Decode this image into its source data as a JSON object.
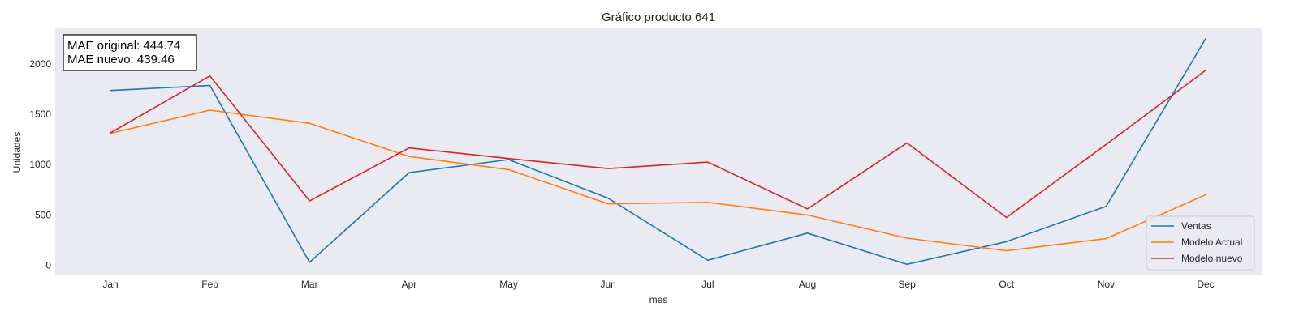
{
  "chart_data": {
    "type": "line",
    "title": "Gráfico producto 641",
    "xlabel": "mes",
    "ylabel": "Unidades",
    "categories": [
      "Jan",
      "Feb",
      "Mar",
      "Apr",
      "May",
      "Jun",
      "Jul",
      "Aug",
      "Sep",
      "Oct",
      "Nov",
      "Dec"
    ],
    "yticks": [
      0,
      500,
      1000,
      1500,
      2000
    ],
    "ylim": [
      -100,
      2360
    ],
    "grid": false,
    "legend_position": "lower-right",
    "background_color": "#eaeaf2",
    "annotation": {
      "lines": [
        "MAE original: 444.74",
        "MAE nuevo: 439.46"
      ]
    },
    "series": [
      {
        "name": "Ventas",
        "color": "#1f77b4",
        "values": [
          1735,
          1785,
          30,
          920,
          1050,
          665,
          50,
          320,
          10,
          235,
          585,
          2250
        ]
      },
      {
        "name": "Modelo Actual",
        "color": "#ff7f0e",
        "values": [
          1310,
          1540,
          1410,
          1080,
          950,
          610,
          625,
          500,
          270,
          145,
          265,
          700
        ]
      },
      {
        "name": "Modelo nuevo",
        "color": "#d62728",
        "values": [
          1315,
          1880,
          640,
          1165,
          1060,
          960,
          1025,
          560,
          1215,
          475,
          1200,
          1935
        ]
      }
    ]
  }
}
